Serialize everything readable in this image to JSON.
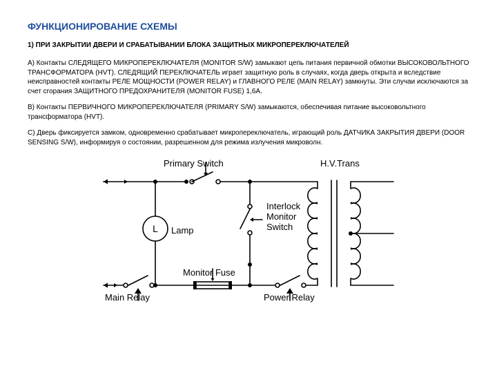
{
  "title_color": "#1f4e9c",
  "body_color": "#000000",
  "title": "ФУНКЦИОНИРОВАНИЕ СХЕМЫ",
  "subheading": "1) ПРИ ЗАКРЫТИИ ДВЕРИ И СРАБАТЫВАНИИ БЛОКА ЗАЩИТНЫХ МИКРОПЕРЕКЛЮЧАТЕЛЕЙ",
  "para_a": "A) Контакты СЛЕДЯЩЕГО МИКРОПЕРЕКЛЮЧАТЕЛЯ (MONITOR S/W)  замыкают цепь питания первичной обмотки ВЫСОКОВОЛЬТНОГО ТРАНСФОРМАТОРА (HVT). СЛЕДЯЩИЙ ПЕРЕКЛЮЧАТЕЛЬ играет защитную роль в случаях, когда дверь открыта и вследствие неисправностей контакты РЕЛЕ МОЩНОСТИ (POWER RELAY) и ГЛАВНОГО РЕЛЕ  (MAIN RELAY) замкнуты. Эти случаи исключаются за счет сгорания ЗАЩИТНОГО ПРЕДОХРАНИТЕЛЯ (MONITOR FUSE) 1,6A.",
  "para_b": "B) Контакты ПЕРВИЧНОГО МИКРОПЕРЕКЛЮЧАТЕЛЯ (PRIMARY S/W) замыкаются, обеспечивая питание высоковольтного трансформатора (HVT).",
  "para_c": "C) Дверь фиксируется замком, одновременно срабатывает микропереключатель, играющий роль ДАТЧИКА ЗАКРЫТИЯ ДВЕРИ (DOOR SENSING S/W), информируя о состоянии, разрешенном для режима излучения микроволн.",
  "diagram": {
    "type": "diagram",
    "label_fontsize": 13,
    "lamp_fontsize": 14,
    "line_color": "#000000",
    "line_width": 1.6,
    "bg": "#ffffff",
    "labels": {
      "primary_switch": "Primary Switch",
      "hv_trans": "H.V.Trans",
      "interlock1": "Interlock",
      "interlock2": "Monitor",
      "interlock3": "Switch",
      "lamp": "Lamp",
      "lamp_L": "L",
      "monitor_fuse": "Monitor Fuse",
      "main_relay": "Main Relay",
      "power_relay": "Power Relay"
    }
  }
}
